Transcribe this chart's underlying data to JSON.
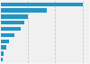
{
  "values": [
    610,
    340,
    200,
    175,
    150,
    100,
    60,
    38,
    22,
    12
  ],
  "bar_color": "#2196C4",
  "background_color": "#f5f5f5",
  "plot_bg_color": "#f0f0f0",
  "grid_color": "#cccccc",
  "figsize": [
    1.0,
    0.71
  ],
  "dpi": 100
}
